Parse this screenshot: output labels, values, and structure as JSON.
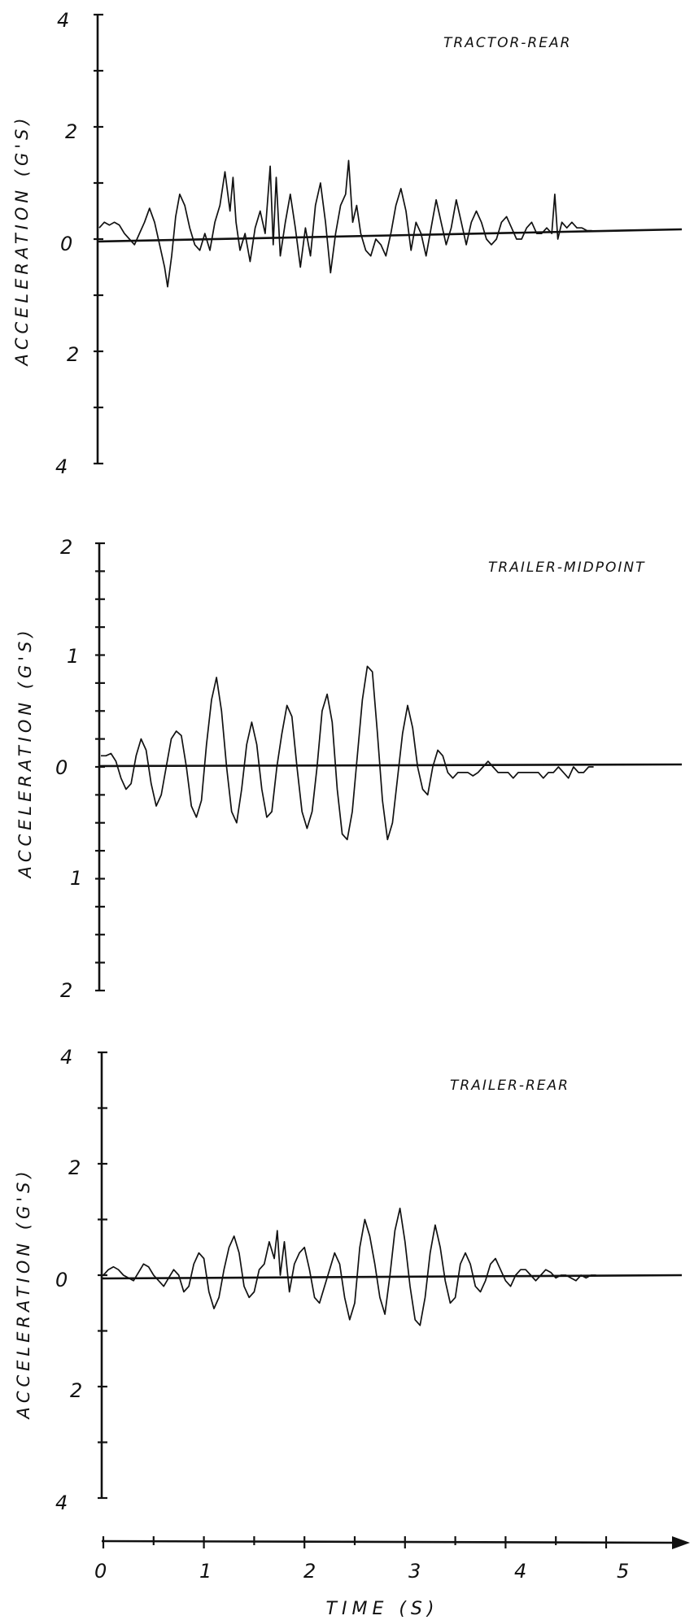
{
  "chart_data": [
    {
      "type": "line",
      "title": "TRACTOR-REAR",
      "ylabel": "ACCELERATION (G'S)",
      "ylim": [
        -4,
        4
      ],
      "yticks": [
        4,
        2,
        0,
        2,
        4
      ],
      "xlim": [
        0,
        5.5
      ],
      "series": [
        {
          "x": [
            0,
            0.05,
            0.1,
            0.15,
            0.2,
            0.25,
            0.3,
            0.35,
            0.4,
            0.45,
            0.5,
            0.55,
            0.6,
            0.65,
            0.68,
            0.72,
            0.76,
            0.8,
            0.85,
            0.9,
            0.95,
            1.0,
            1.05,
            1.1,
            1.15,
            1.2,
            1.25,
            1.3,
            1.33,
            1.36,
            1.4,
            1.45,
            1.5,
            1.55,
            1.6,
            1.65,
            1.7,
            1.73,
            1.76,
            1.8,
            1.85,
            1.9,
            1.95,
            2.0,
            2.05,
            2.1,
            2.15,
            2.2,
            2.25,
            2.3,
            2.35,
            2.4,
            2.45,
            2.48,
            2.52,
            2.56,
            2.6,
            2.65,
            2.7,
            2.75,
            2.8,
            2.85,
            2.9,
            2.95,
            3.0,
            3.05,
            3.1,
            3.15,
            3.2,
            3.25,
            3.3,
            3.35,
            3.4,
            3.45,
            3.5,
            3.55,
            3.6,
            3.65,
            3.7,
            3.75,
            3.8,
            3.85,
            3.9,
            3.95,
            4.0,
            4.05,
            4.1,
            4.15,
            4.2,
            4.25,
            4.3,
            4.35,
            4.4,
            4.45,
            4.5,
            4.53,
            4.56,
            4.6,
            4.65,
            4.7,
            4.75,
            4.8,
            4.85,
            4.9
          ],
          "y": [
            0.2,
            0.3,
            0.25,
            0.3,
            0.25,
            0.1,
            0,
            -0.1,
            0.1,
            0.3,
            0.55,
            0.3,
            -0.1,
            -0.5,
            -0.85,
            -0.3,
            0.4,
            0.8,
            0.6,
            0.2,
            -0.1,
            -0.2,
            0.1,
            -0.2,
            0.3,
            0.6,
            1.2,
            0.5,
            1.1,
            0.3,
            -0.2,
            0.1,
            -0.4,
            0.2,
            0.5,
            0.1,
            1.3,
            -0.1,
            1.1,
            -0.3,
            0.3,
            0.8,
            0.2,
            -0.5,
            0.2,
            -0.3,
            0.6,
            1.0,
            0.3,
            -0.6,
            0.1,
            0.6,
            0.8,
            1.4,
            0.3,
            0.6,
            0.1,
            -0.2,
            -0.3,
            0,
            -0.1,
            -0.3,
            0.1,
            0.6,
            0.9,
            0.5,
            -0.2,
            0.3,
            0.1,
            -0.3,
            0.2,
            0.7,
            0.3,
            -0.1,
            0.2,
            0.7,
            0.3,
            -0.1,
            0.3,
            0.5,
            0.3,
            0,
            -0.1,
            0,
            0.3,
            0.4,
            0.2,
            0,
            0,
            0.2,
            0.3,
            0.1,
            0.1,
            0.2,
            0.1,
            0.8,
            0,
            0.3,
            0.2,
            0.3,
            0.2,
            0.2,
            0.15,
            0.15
          ]
        }
      ]
    },
    {
      "type": "line",
      "title": "TRAILER-MIDPOINT",
      "ylabel": "ACCELERATION (G'S)",
      "ylim": [
        -2,
        2
      ],
      "yticks": [
        2,
        1,
        0,
        1,
        2
      ],
      "xlim": [
        0,
        5.5
      ],
      "series": [
        {
          "x": [
            0,
            0.05,
            0.1,
            0.15,
            0.2,
            0.25,
            0.3,
            0.35,
            0.4,
            0.45,
            0.5,
            0.55,
            0.6,
            0.65,
            0.7,
            0.75,
            0.8,
            0.85,
            0.9,
            0.95,
            1.0,
            1.05,
            1.1,
            1.15,
            1.2,
            1.25,
            1.3,
            1.35,
            1.4,
            1.45,
            1.5,
            1.55,
            1.6,
            1.65,
            1.7,
            1.75,
            1.8,
            1.85,
            1.9,
            1.95,
            2.0,
            2.05,
            2.1,
            2.15,
            2.2,
            2.25,
            2.3,
            2.35,
            2.4,
            2.45,
            2.5,
            2.55,
            2.6,
            2.65,
            2.7,
            2.75,
            2.8,
            2.85,
            2.9,
            2.95,
            3.0,
            3.05,
            3.1,
            3.15,
            3.2,
            3.25,
            3.3,
            3.35,
            3.4,
            3.45,
            3.5,
            3.55,
            3.6,
            3.65,
            3.7,
            3.75,
            3.8,
            3.85,
            3.9,
            3.95,
            4.0,
            4.05,
            4.1,
            4.15,
            4.2,
            4.25,
            4.3,
            4.35,
            4.4,
            4.45,
            4.5,
            4.55,
            4.6,
            4.65,
            4.7,
            4.75,
            4.8,
            4.85,
            4.9
          ],
          "y": [
            0.1,
            0.1,
            0.12,
            0.05,
            -0.1,
            -0.2,
            -0.15,
            0.1,
            0.25,
            0.15,
            -0.15,
            -0.35,
            -0.25,
            0,
            0.25,
            0.32,
            0.28,
            0,
            -0.35,
            -0.45,
            -0.3,
            0.2,
            0.6,
            0.8,
            0.5,
            0,
            -0.4,
            -0.5,
            -0.2,
            0.2,
            0.4,
            0.2,
            -0.2,
            -0.45,
            -0.4,
            0,
            0.3,
            0.55,
            0.45,
            0,
            -0.4,
            -0.55,
            -0.4,
            0,
            0.5,
            0.65,
            0.4,
            -0.2,
            -0.6,
            -0.65,
            -0.4,
            0.1,
            0.6,
            0.9,
            0.85,
            0.3,
            -0.3,
            -0.65,
            -0.5,
            -0.1,
            0.3,
            0.55,
            0.35,
            0,
            -0.2,
            -0.25,
            0,
            0.15,
            0.1,
            -0.05,
            -0.1,
            -0.05,
            -0.05,
            -0.05,
            -0.08,
            -0.05,
            0,
            0.05,
            0,
            -0.05,
            -0.05,
            -0.05,
            -0.1,
            -0.05,
            -0.05,
            -0.05,
            -0.05,
            -0.05,
            -0.1,
            -0.05,
            -0.05,
            0,
            -0.05,
            -0.1,
            0,
            -0.05,
            -0.05,
            0,
            0
          ]
        }
      ]
    },
    {
      "type": "line",
      "title": "TRAILER-REAR",
      "ylabel": "ACCELERATION (G'S)",
      "xlabel": "TIME (S)",
      "ylim": [
        -4,
        4
      ],
      "yticks": [
        4,
        2,
        0,
        2,
        4
      ],
      "xlim": [
        0,
        5.5
      ],
      "xticks": [
        0,
        1,
        2,
        3,
        4,
        5
      ],
      "series": [
        {
          "x": [
            0,
            0.05,
            0.1,
            0.15,
            0.2,
            0.25,
            0.3,
            0.35,
            0.4,
            0.45,
            0.5,
            0.55,
            0.6,
            0.65,
            0.7,
            0.75,
            0.8,
            0.85,
            0.9,
            0.95,
            1.0,
            1.05,
            1.1,
            1.15,
            1.2,
            1.25,
            1.3,
            1.35,
            1.4,
            1.45,
            1.5,
            1.55,
            1.6,
            1.65,
            1.7,
            1.73,
            1.76,
            1.8,
            1.85,
            1.9,
            1.95,
            2.0,
            2.05,
            2.1,
            2.15,
            2.2,
            2.25,
            2.3,
            2.35,
            2.4,
            2.45,
            2.5,
            2.55,
            2.6,
            2.65,
            2.7,
            2.75,
            2.8,
            2.85,
            2.9,
            2.95,
            3.0,
            3.05,
            3.1,
            3.15,
            3.2,
            3.25,
            3.3,
            3.35,
            3.4,
            3.45,
            3.5,
            3.55,
            3.6,
            3.65,
            3.7,
            3.75,
            3.8,
            3.85,
            3.9,
            3.95,
            4.0,
            4.05,
            4.1,
            4.15,
            4.2,
            4.25,
            4.3,
            4.35,
            4.4,
            4.45,
            4.5,
            4.55,
            4.6,
            4.65,
            4.7,
            4.75,
            4.8,
            4.85,
            4.9
          ],
          "y": [
            0,
            0.1,
            0.15,
            0.1,
            0,
            -0.05,
            -0.1,
            0.05,
            0.2,
            0.15,
            0,
            -0.1,
            -0.2,
            -0.05,
            0.1,
            0,
            -0.3,
            -0.2,
            0.2,
            0.4,
            0.3,
            -0.3,
            -0.6,
            -0.4,
            0.1,
            0.5,
            0.7,
            0.4,
            -0.2,
            -0.4,
            -0.3,
            0.1,
            0.2,
            0.6,
            0.3,
            0.8,
            0,
            0.6,
            -0.3,
            0.2,
            0.4,
            0.5,
            0.1,
            -0.4,
            -0.5,
            -0.2,
            0.1,
            0.4,
            0.2,
            -0.4,
            -0.8,
            -0.5,
            0.5,
            1.0,
            0.7,
            0.2,
            -0.4,
            -0.7,
            0,
            0.8,
            1.2,
            0.6,
            -0.2,
            -0.8,
            -0.9,
            -0.4,
            0.4,
            0.9,
            0.5,
            -0.1,
            -0.5,
            -0.4,
            0.2,
            0.4,
            0.2,
            -0.2,
            -0.3,
            -0.1,
            0.2,
            0.3,
            0.1,
            -0.1,
            -0.2,
            0,
            0.1,
            0.1,
            0,
            -0.1,
            0,
            0.1,
            0.05,
            -0.05,
            0,
            0,
            -0.05,
            -0.1,
            0,
            -0.05,
            0,
            0
          ]
        }
      ]
    }
  ]
}
